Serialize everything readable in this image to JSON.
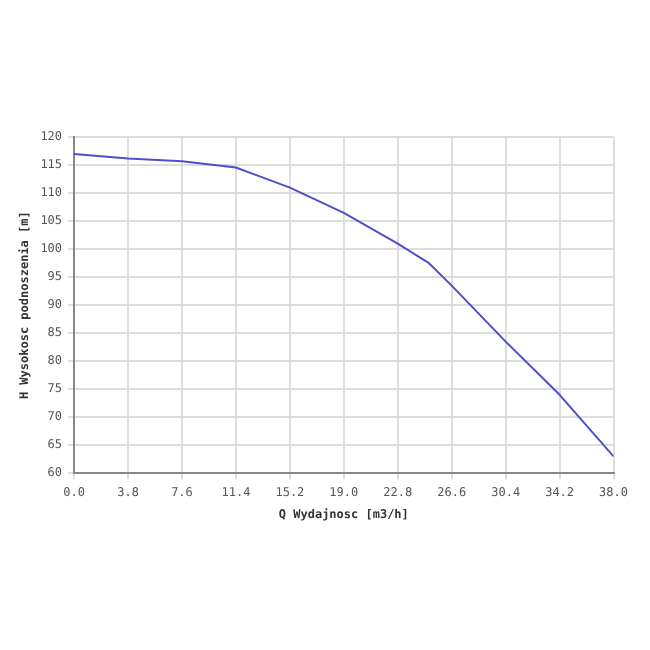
{
  "chart_data": {
    "type": "line",
    "xlabel": "Q Wydajnosc [m3/h]",
    "ylabel": "H Wysokosc podnoszenia [m]",
    "x": [
      0,
      3.8,
      7.6,
      11.4,
      15.2,
      19,
      22.8,
      25,
      26.6,
      28.5,
      30.4,
      34.2,
      38
    ],
    "series": [
      {
        "color": "#4f4fc8",
        "values": [
          117,
          116.2,
          115.7,
          114.6,
          111,
          106.5,
          101,
          97.5,
          93.5,
          88.5,
          83.5,
          74,
          63
        ]
      }
    ],
    "xlim": [
      0,
      38
    ],
    "xticks": [
      {
        "value": 0,
        "label": "0.0"
      },
      {
        "value": 3.8,
        "label": "3.8"
      },
      {
        "value": 7.6,
        "label": "7.6"
      },
      {
        "value": 11.4,
        "label": "11.4"
      },
      {
        "value": 15.2,
        "label": "15.2"
      },
      {
        "value": 19,
        "label": "19.0"
      },
      {
        "value": 22.8,
        "label": "22.8"
      },
      {
        "value": 26.6,
        "label": "26.6"
      },
      {
        "value": 30.4,
        "label": "30.4"
      },
      {
        "value": 34.2,
        "label": "34.2"
      },
      {
        "value": 38,
        "label": "38.0"
      }
    ],
    "ylim": [
      60,
      120
    ],
    "yticks": [
      60,
      65,
      70,
      75,
      80,
      85,
      90,
      95,
      100,
      105,
      110,
      115,
      120
    ],
    "grid": true,
    "legend": false,
    "marker": "none",
    "line_style": "solid"
  }
}
